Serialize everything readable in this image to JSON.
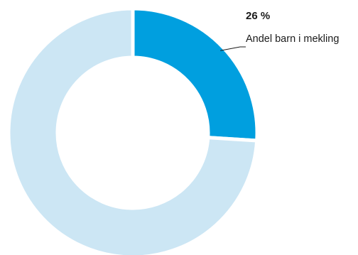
{
  "chart_data": {
    "type": "pie",
    "style": "donut",
    "title": "",
    "slices": [
      {
        "label": "Andel barn i mekling",
        "value": 26,
        "value_label": "26 %",
        "color": "#009FDF",
        "highlighted": true
      },
      {
        "label": "",
        "value": 74,
        "value_label": "",
        "color": "#CCE6F4",
        "highlighted": false
      }
    ],
    "legend": "none",
    "callout": {
      "slice_index": 0,
      "value_text": "26 %",
      "label_text": "Andel barn i mekling"
    }
  }
}
